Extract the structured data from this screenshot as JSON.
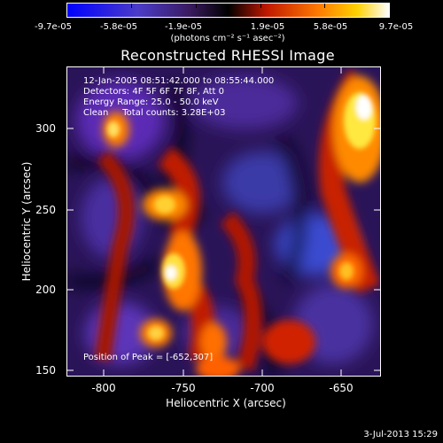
{
  "colorbar": {
    "tick_labels": [
      "-9.7e-05",
      "-5.8e-05",
      "-1.9e-05",
      "1.9e-05",
      "5.8e-05",
      "9.7e-05"
    ],
    "units": "(photons cm⁻² s⁻¹ asec⁻²)"
  },
  "plot": {
    "title": "Reconstructed RHESSI Image",
    "info_lines": [
      "12-Jan-2005 08:51:42.000 to 08:55:44.000",
      "Detectors: 4F 5F 6F 7F 8F, Att 0",
      "Energy Range: 25.0 - 50.0 keV",
      "Clean     Total counts: 3.28E+03"
    ],
    "peak_text": "Position of Peak = [-652,307]"
  },
  "axes": {
    "xlabel": "Heliocentric X (arcsec)",
    "ylabel": "Heliocentric Y (arcsec)",
    "x_ticks": [
      "-800",
      "-750",
      "-700",
      "-650"
    ],
    "y_ticks": [
      "300",
      "250",
      "200",
      "150"
    ]
  },
  "footer": {
    "timestamp": "3-Jul-2013 15:29"
  },
  "colors": {
    "background": "#000000",
    "foreground": "#ffffff"
  }
}
